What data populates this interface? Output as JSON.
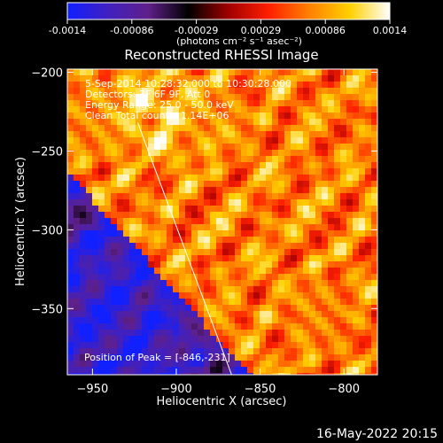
{
  "colorbar": {
    "ticks": [
      "-0.0014",
      "-0.00086",
      "-0.00029",
      "0.00029",
      "0.00086",
      "0.0014"
    ],
    "units": "(photons cm⁻² s⁻¹ asec⁻²)",
    "colormap": [
      "#1020ff",
      "#4020c0",
      "#60208a",
      "#000000",
      "#a00000",
      "#ff2000",
      "#ff8000",
      "#ffd000",
      "#ffffff"
    ]
  },
  "chart_data": {
    "type": "heatmap",
    "title": "Reconstructed RHESSI Image",
    "xlabel": "Heliocentric X (arcsec)",
    "ylabel": "Heliocentric Y (arcsec)",
    "xlim": [
      -965,
      -780
    ],
    "ylim": [
      -392,
      -198
    ],
    "xticks": [
      -950,
      -900,
      -850,
      -800
    ],
    "yticks": [
      -200,
      -250,
      -300,
      -350
    ],
    "limb_line": {
      "x": [
        -923,
        -867
      ],
      "y": [
        -232,
        -392
      ]
    },
    "annotations": [
      "5-Sep-2014 10:28:32.000 to 10:30:28.000",
      "Detectors: 3F 6F 9F, Att 0",
      "Energy Range: 25.0 - 50.0 keV",
      "Clean    Total counts: 1.14E+06"
    ],
    "peak_label": "Position of Peak = [-846,-231]",
    "peak": {
      "x": -846,
      "y": -231
    }
  },
  "footer": {
    "timestamp": "16-May-2022 20:15"
  }
}
